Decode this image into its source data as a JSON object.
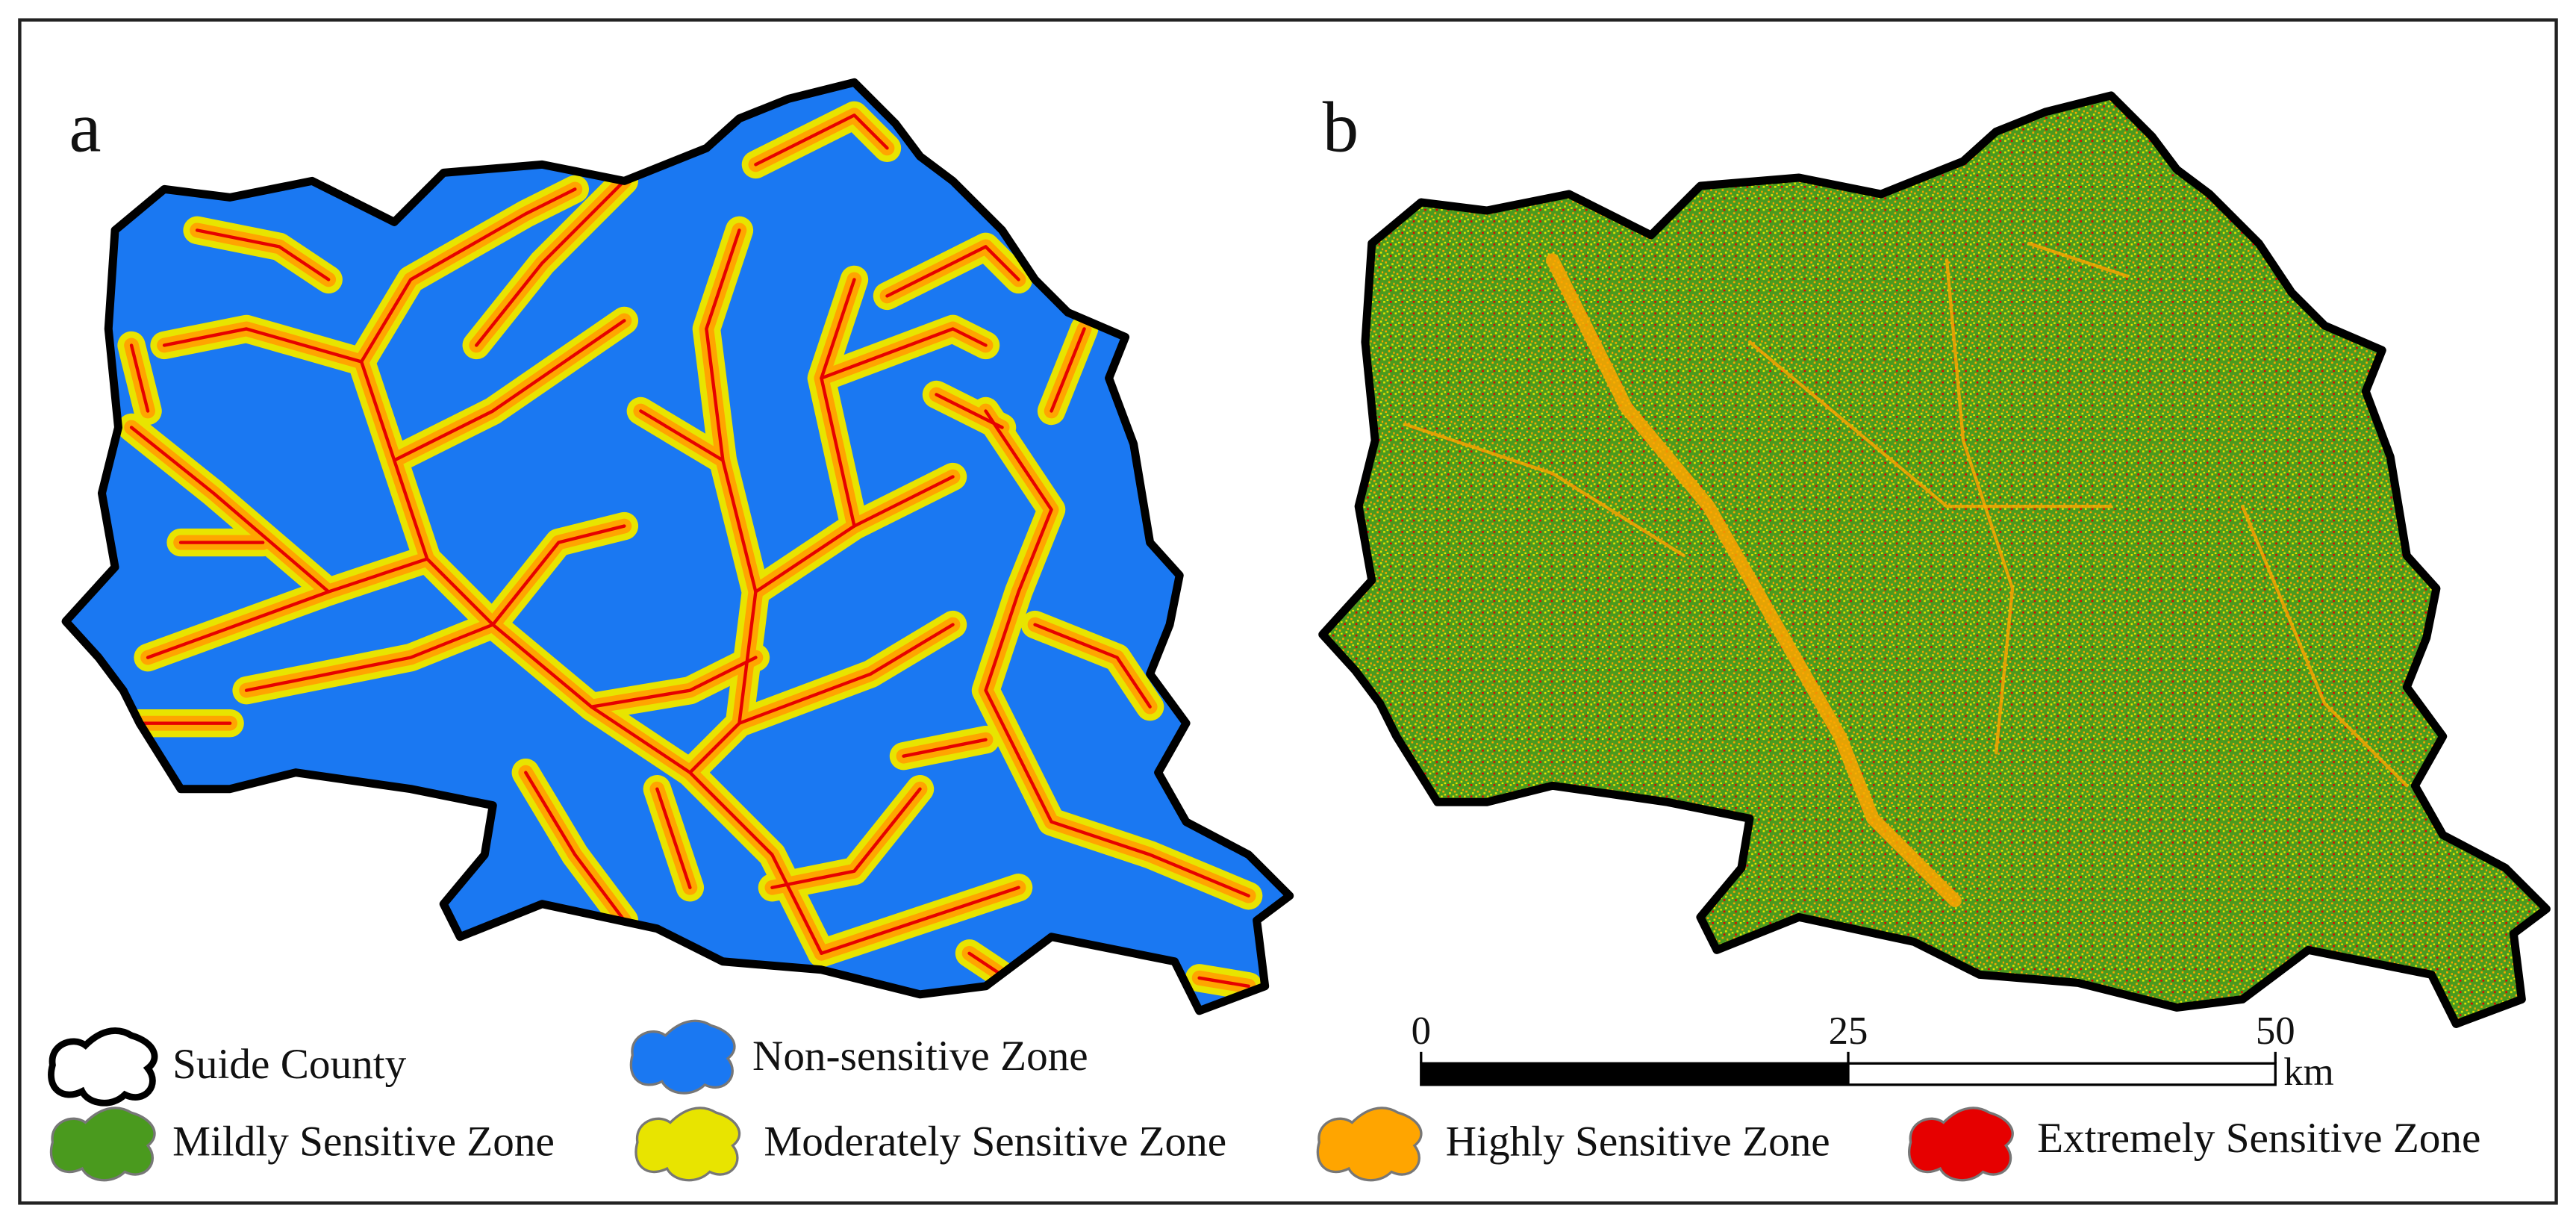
{
  "panels": [
    {
      "label": "a"
    },
    {
      "label": "b"
    }
  ],
  "legend": [
    {
      "label": "Suide County",
      "color": "#ffffff"
    },
    {
      "label": "Non-sensitive Zone",
      "color": "#1a78f2"
    },
    {
      "label": "Mildly Sensitive Zone",
      "color": "#4a9a1e"
    },
    {
      "label": "Moderately Sensitive Zone",
      "color": "#e8e400"
    },
    {
      "label": "Highly Sensitive Zone",
      "color": "#ffa500"
    },
    {
      "label": "Extremely Sensitive Zone",
      "color": "#e60000"
    }
  ],
  "scale_bar": {
    "ticks": [
      0,
      25,
      50
    ],
    "unit": "km"
  }
}
